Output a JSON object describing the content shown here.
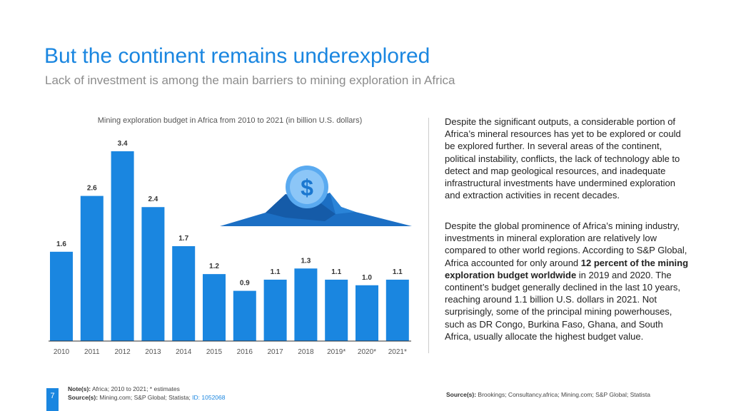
{
  "header": {
    "title": "But the continent remains underexplored",
    "subtitle": "Lack of investment is among the main barriers to mining exploration in Africa"
  },
  "chart_data": {
    "type": "bar",
    "title": "Mining exploration budget in Africa from 2010 to 2021 (in billion U.S. dollars)",
    "categories": [
      "2010",
      "2011",
      "2012",
      "2013",
      "2014",
      "2015",
      "2016",
      "2017",
      "2018",
      "2019*",
      "2020*",
      "2021*"
    ],
    "values": [
      1.6,
      2.6,
      3.4,
      2.4,
      1.7,
      1.2,
      0.9,
      1.1,
      1.3,
      1.1,
      1.0,
      1.1
    ],
    "labels": [
      "1.6",
      "2.6",
      "3.4",
      "2.4",
      "1.7",
      "1.2",
      "0.9",
      "1.1",
      "1.3",
      "1.1",
      "1.0",
      "1.1"
    ],
    "ylim": [
      0,
      3.4
    ],
    "xlabel": "",
    "ylabel": "",
    "color": "#1a86e0",
    "grid": false
  },
  "text": {
    "p1": "Despite the significant outputs, a considerable portion of Africa’s mineral resources has yet to be explored or could be explored further. In several areas of the continent, political instability, conflicts, the lack of technology able to detect and map geological resources, and inadequate infrastructural investments have undermined exploration and extraction activities in recent decades.",
    "p2_a": "Despite the global prominence of Africa’s mining industry, investments in mineral exploration are relatively low compared to other world regions. According to S&P Global, Africa accounted for only around ",
    "p2_b": "12 percent of the mining exploration budget worldwide",
    "p2_c": " in 2019 and 2020. The continent’s budget generally declined in the last 10 years, reaching around 1.1 billion U.S. dollars in 2021. Not surprisingly, some of the principal mining powerhouses, such as DR Congo, Burkina Faso, Ghana, and South Africa, usually allocate the highest budget value."
  },
  "footer": {
    "note_label": "Note(s):",
    "note": " Africa; 2010 to 2021; * estimates",
    "source_label": "Source(s):",
    "source": " Mining.com; S&P Global; Statista; ",
    "source_id": "ID: 1052068",
    "right_source_label": "Source(s):",
    "right_source": " Brookings; Consultancy.africa; Mining.com; S&P Global; Statista",
    "page": "7"
  },
  "icons": {
    "illustration": "dollar-coin-mountain-icon"
  }
}
